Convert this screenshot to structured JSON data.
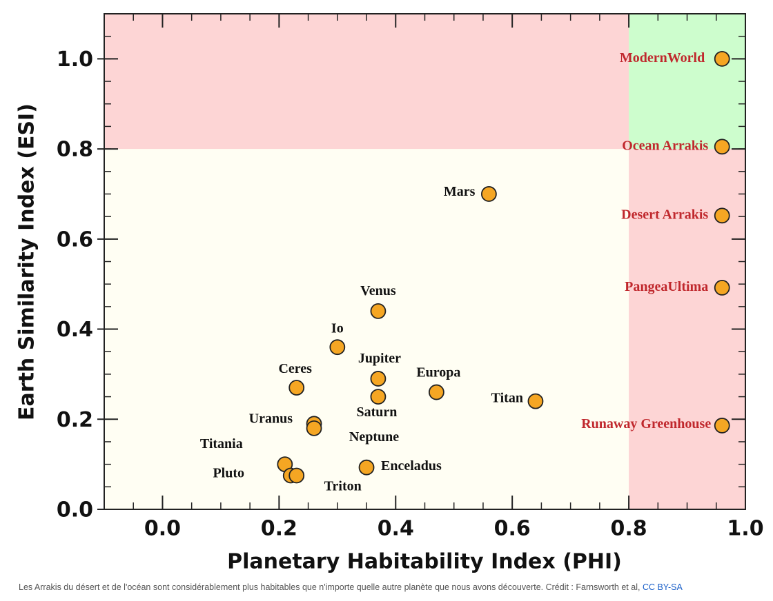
{
  "chart_data": {
    "type": "scatter",
    "x_label": "Planetary Habitability Index (PHI)",
    "y_label": "Earth Similarity Index (ESI)",
    "xlim": [
      -0.1,
      1.0
    ],
    "ylim": [
      0,
      1.1
    ],
    "xticks": [
      {
        "value": 0,
        "label": "0.0"
      },
      0.2,
      0.4,
      0.6,
      0.8,
      {
        "value": 1,
        "label": "1.0"
      }
    ],
    "yticks": [
      {
        "value": 0,
        "label": "0.0"
      },
      0.2,
      0.4,
      0.6,
      0.8,
      {
        "value": 1,
        "label": "1.0"
      }
    ],
    "minor_tick_step": 0.05,
    "plot_background": "#fffef3",
    "zones": [
      {
        "xlim": [
          -0.1,
          0.8
        ],
        "ylim": [
          0.8,
          1.1
        ],
        "color": "#fdd5d5"
      },
      {
        "xlim": [
          0.8,
          1.0
        ],
        "ylim": [
          0.8,
          1.1
        ],
        "color": "#cdfdcd"
      },
      {
        "xlim": [
          0.8,
          1.0
        ],
        "ylim": [
          0,
          0.8
        ],
        "color": "#fdd5d5"
      }
    ],
    "marker_color": "#f5a623",
    "labels": [
      "ModernWorld",
      "Ocean Arrakis",
      "Desert Arrakis",
      "PangeaUltima",
      "Runaway Greenhouse",
      "Mars",
      "Venus",
      "Io",
      "Jupiter",
      "Saturn",
      "Europa",
      "Titan",
      "Ceres",
      "Uranus",
      "Neptune",
      "Titania",
      "Pluto",
      "Triton",
      "Enceladus"
    ],
    "label_colors": [
      "#c0282d",
      "#c0282d",
      "#c0282d",
      "#c0282d",
      "#c0282d",
      "#111111",
      "#111111",
      "#111111",
      "#111111",
      "#111111",
      "#111111",
      "#111111",
      "#111111",
      "#111111",
      "#111111",
      "#111111",
      "#111111",
      "#111111",
      "#111111"
    ],
    "x": [
      0.96,
      0.96,
      0.96,
      0.96,
      0.96,
      0.56,
      0.37,
      0.3,
      0.37,
      0.37,
      0.47,
      0.64,
      0.23,
      0.26,
      0.26,
      0.21,
      0.22,
      0.23,
      0.35
    ],
    "y": [
      1.0,
      0.805,
      0.652,
      0.492,
      0.186,
      0.7,
      0.44,
      0.36,
      0.29,
      0.25,
      0.26,
      0.24,
      0.27,
      0.19,
      0.18,
      0.1,
      0.075,
      0.075,
      0.093
    ]
  },
  "caption": {
    "text": "Les Arrakis du désert et de l'océan sont considérablement plus habitables que n'importe quelle autre planète que nous avons découverte. Crédit : Farnsworth et al, ",
    "link": "CC BY-SA"
  }
}
